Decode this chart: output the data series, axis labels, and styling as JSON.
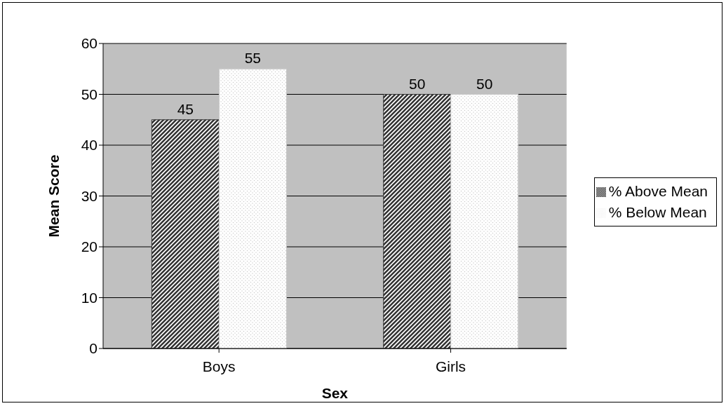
{
  "chart_data": {
    "type": "bar",
    "xlabel": "Sex",
    "ylabel": "Mean Score",
    "categories": [
      "Boys",
      "Girls"
    ],
    "series": [
      {
        "name": "% Above Mean",
        "color": "#333333",
        "values": [
          45,
          50
        ]
      },
      {
        "name": "% Below Mean",
        "color": "#c8c8c8",
        "values": [
          55,
          50
        ]
      }
    ],
    "ylim": [
      0,
      60
    ],
    "yticks": [
      0,
      10,
      20,
      30,
      40,
      50,
      60
    ],
    "grid": "y",
    "legend": "right",
    "data_labels": true
  }
}
